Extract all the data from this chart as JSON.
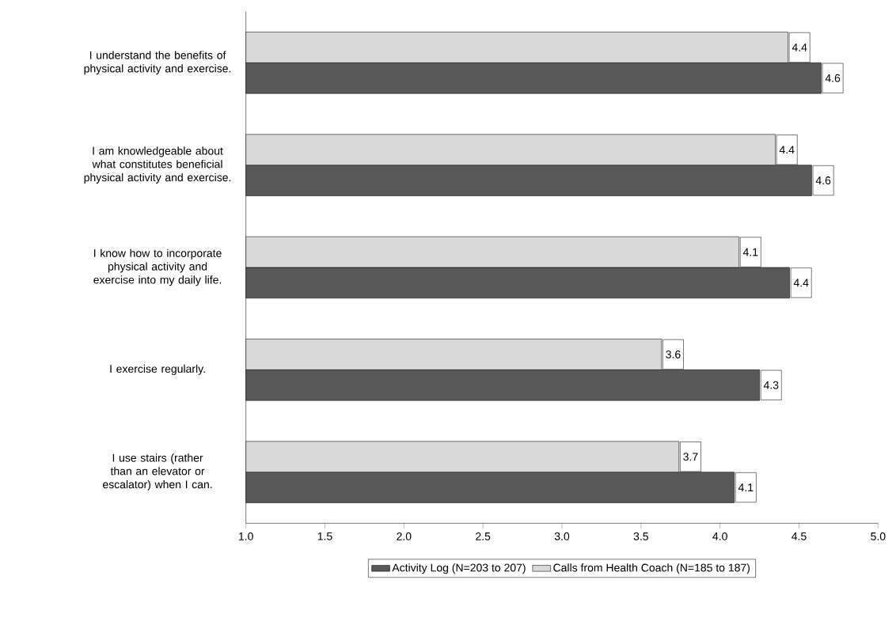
{
  "chart_data": {
    "type": "bar",
    "orientation": "horizontal",
    "categories": [
      "I understand the benefits of physical activity and exercise.",
      "I am knowledgeable about what constitutes beneficial physical activity and exercise.",
      "I know how to incorporate physical activity and exercise into my daily life.",
      "I exercise regularly.",
      "I use stairs (rather than an elevator or escalator) when I can."
    ],
    "series": [
      {
        "name": "Activity Log (N=203 to 207)",
        "color": "#595959",
        "values": [
          4.64,
          4.58,
          4.44,
          4.25,
          4.09
        ],
        "value_labels": [
          "4.6",
          "4.6",
          "4.4",
          "4.3",
          "4.1"
        ]
      },
      {
        "name": "Calls from Health Coach (N=185 to 187)",
        "color": "#d9d9d9",
        "values": [
          4.43,
          4.35,
          4.12,
          3.63,
          3.74
        ],
        "value_labels": [
          "4.4",
          "4.4",
          "4.1",
          "3.6",
          "3.7"
        ]
      }
    ],
    "xlim": [
      1,
      5
    ],
    "xticks": [
      {
        "value": 1,
        "label": "1.0"
      },
      {
        "value": 1.5,
        "label": "1.5"
      },
      {
        "value": 2,
        "label": "2.0"
      },
      {
        "value": 2.5,
        "label": "2.5"
      },
      {
        "value": 3,
        "label": "3.0"
      },
      {
        "value": 3.5,
        "label": "3.5"
      },
      {
        "value": 4,
        "label": "4.0"
      },
      {
        "value": 4.5,
        "label": "4.5"
      },
      {
        "value": 5,
        "label": "5.0"
      }
    ],
    "legend": "bottom",
    "grid": false
  }
}
